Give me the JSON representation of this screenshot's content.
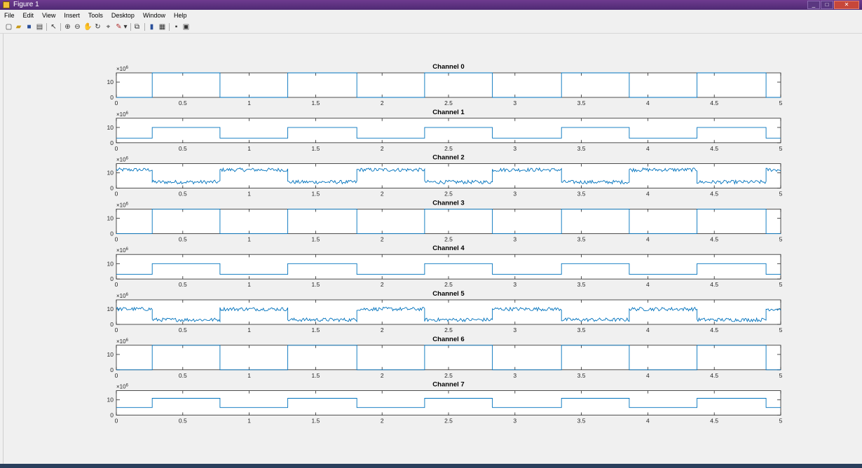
{
  "window": {
    "title": "Figure 1",
    "buttons": [
      "_",
      "□",
      "✕"
    ]
  },
  "menu": [
    "File",
    "Edit",
    "View",
    "Insert",
    "Tools",
    "Desktop",
    "Window",
    "Help"
  ],
  "toolbar": [
    "new-icon",
    "open-icon",
    "save-icon",
    "print-icon",
    "pointer-icon",
    "zoom-in-icon",
    "zoom-out-icon",
    "pan-icon",
    "rotate-icon",
    "data-cursor-icon",
    "brush-icon",
    "link-icon",
    "colorbar-icon",
    "legend-icon",
    "hide-tools-icon",
    "dock-icon"
  ],
  "chart_data": {
    "type": "line",
    "xlim": [
      0,
      5
    ],
    "xticks": [
      "0",
      "0.5",
      "1",
      "1.5",
      "2",
      "2.5",
      "3",
      "3.5",
      "4",
      "4.5",
      "5"
    ],
    "ylim": [
      0,
      16
    ],
    "yticks": [
      "0",
      "10"
    ],
    "exponent": "×10^6",
    "line_color": "#0072bd",
    "transitions": [
      0.27,
      0.78,
      1.29,
      1.81,
      2.32,
      2.83,
      3.35,
      3.86,
      4.37,
      4.89
    ],
    "subplots": [
      {
        "title": "Channel 0",
        "high": 16,
        "low": 0,
        "start": "low",
        "noise": 0
      },
      {
        "title": "Channel 1",
        "high": 10,
        "low": 3,
        "start": "low",
        "noise": 0
      },
      {
        "title": "Channel 2",
        "high": 12,
        "low": 4,
        "start": "high",
        "noise": 1.2
      },
      {
        "title": "Channel 3",
        "high": 16,
        "low": 0,
        "start": "low",
        "noise": 0
      },
      {
        "title": "Channel 4",
        "high": 10,
        "low": 3,
        "start": "low",
        "noise": 0
      },
      {
        "title": "Channel 5",
        "high": 10,
        "low": 3,
        "start": "high",
        "noise": 1.2
      },
      {
        "title": "Channel 6",
        "high": 16,
        "low": 0,
        "start": "low",
        "noise": 0
      },
      {
        "title": "Channel 7",
        "high": 11,
        "low": 5,
        "start": "low",
        "noise": 0
      }
    ]
  }
}
